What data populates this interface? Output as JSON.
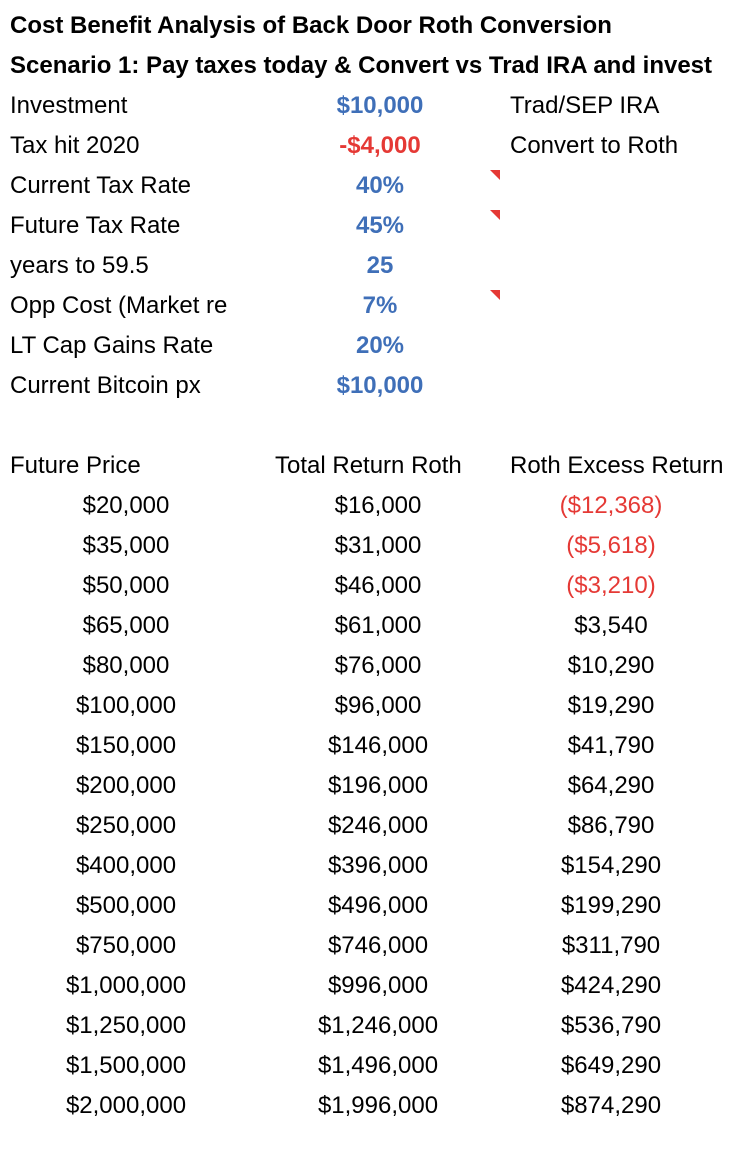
{
  "title": "Cost Benefit Analysis of Back Door Roth Conversion",
  "scenario": "Scenario 1: Pay taxes today & Convert vs Trad IRA and invest",
  "inputs": [
    {
      "label": "Investment",
      "value": "$10,000",
      "note": "Trad/SEP IRA",
      "color": "#3f6fb8"
    },
    {
      "label": "Tax hit 2020",
      "value": "-$4,000",
      "note": "Convert to Roth",
      "color": "#e53935"
    },
    {
      "label": "Current Tax Rate",
      "value": "40%",
      "note": "",
      "color": "#3f6fb8"
    },
    {
      "label": "Future Tax Rate",
      "value": "45%",
      "note": "",
      "color": "#3f6fb8"
    },
    {
      "label": "years to 59.5",
      "value": "25",
      "note": "",
      "color": "#3f6fb8"
    },
    {
      "label": "Opp Cost (Market re",
      "value": "7%",
      "note": "",
      "color": "#3f6fb8"
    },
    {
      "label": "LT Cap Gains Rate",
      "value": "20%",
      "note": "",
      "color": "#3f6fb8"
    },
    {
      "label": "Current Bitcoin px",
      "value": "$10,000",
      "note": "",
      "color": "#3f6fb8"
    }
  ],
  "table": {
    "headers": [
      "Future Price",
      "Total Return Roth",
      "Roth Excess Return"
    ],
    "rows": [
      [
        "$20,000",
        "$16,000",
        "($12,368)"
      ],
      [
        "$35,000",
        "$31,000",
        "($5,618)"
      ],
      [
        "$50,000",
        "$46,000",
        "($3,210)"
      ],
      [
        "$65,000",
        "$61,000",
        "$3,540"
      ],
      [
        "$80,000",
        "$76,000",
        "$10,290"
      ],
      [
        "$100,000",
        "$96,000",
        "$19,290"
      ],
      [
        "$150,000",
        "$146,000",
        "$41,790"
      ],
      [
        "$200,000",
        "$196,000",
        "$64,290"
      ],
      [
        "$250,000",
        "$246,000",
        "$86,790"
      ],
      [
        "$400,000",
        "$396,000",
        "$154,290"
      ],
      [
        "$500,000",
        "$496,000",
        "$199,290"
      ],
      [
        "$750,000",
        "$746,000",
        "$311,790"
      ],
      [
        "$1,000,000",
        "$996,000",
        "$424,290"
      ],
      [
        "$1,250,000",
        "$1,246,000",
        "$536,790"
      ],
      [
        "$1,500,000",
        "$1,496,000",
        "$649,290"
      ],
      [
        "$2,000,000",
        "$1,996,000",
        "$874,290"
      ]
    ],
    "negative_color": "#e53935"
  }
}
